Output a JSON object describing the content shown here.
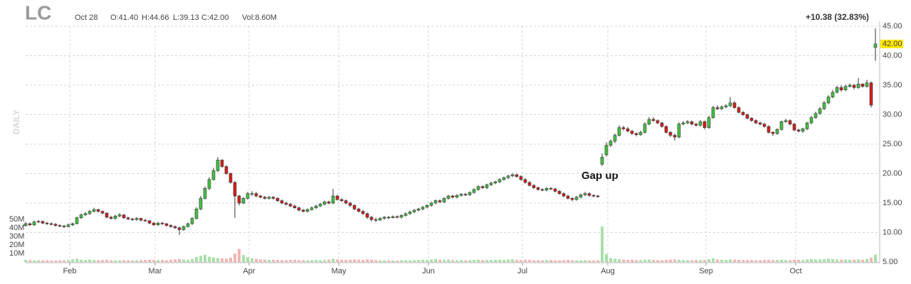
{
  "chart_data": {
    "type": "candlestick",
    "title": "LC",
    "header_stats": [
      "Oct 28",
      "O:41.40",
      "H:44.66",
      "L:39.13",
      "C:42.00",
      "Vol:8.60M"
    ],
    "change_label": "+10.38 (32.83%)",
    "period_label": "DAILY",
    "annotation": "Gap up",
    "up_color": "#44c144",
    "down_color": "#d41f1f",
    "volume_up_color": "#a8e0a8",
    "volume_down_color": "#f4b4b4",
    "change_color": "#2a9d2a",
    "grid": true,
    "xlim": [
      0,
      199
    ],
    "xticks": [
      {
        "value": 11,
        "label": "Feb"
      },
      {
        "value": 31,
        "label": "Mar"
      },
      {
        "value": 53,
        "label": "Apr"
      },
      {
        "value": 74,
        "label": "May"
      },
      {
        "value": 95,
        "label": "Jun"
      },
      {
        "value": 117,
        "label": "Jul"
      },
      {
        "value": 137,
        "label": "Aug"
      },
      {
        "value": 160,
        "label": "Sep"
      },
      {
        "value": 181,
        "label": "Oct"
      }
    ],
    "ylim": [
      5,
      45
    ],
    "yticks": [
      {
        "value": 5,
        "label": "5.00"
      },
      {
        "value": 10,
        "label": "10.00"
      },
      {
        "value": 15,
        "label": "15.00"
      },
      {
        "value": 20,
        "label": "20.00"
      },
      {
        "value": 25,
        "label": "25.00"
      },
      {
        "value": 30,
        "label": "30.00"
      },
      {
        "value": 35,
        "label": "35.00"
      },
      {
        "value": 40,
        "label": "40.00"
      },
      {
        "value": 45,
        "label": "45.00"
      }
    ],
    "last_price": {
      "value": 42,
      "label": "42.00"
    },
    "open": [
      11.2,
      11.5,
      11.3,
      11.8,
      11.9,
      11.6,
      11.5,
      11.4,
      11.2,
      11.1,
      11.0,
      11.3,
      11.5,
      12.5,
      13.0,
      13.2,
      13.6,
      13.9,
      13.6,
      13.3,
      12.6,
      12.4,
      12.8,
      13.0,
      12.5,
      12.3,
      12.2,
      12.4,
      12.1,
      12.0,
      11.6,
      11.3,
      11.6,
      11.5,
      11.2,
      11.0,
      10.8,
      10.5,
      11.0,
      11.5,
      12.4,
      14.0,
      15.8,
      17.5,
      19.0,
      20.5,
      22.3,
      21.2,
      20.0,
      18.5,
      16.2,
      15.0,
      15.8,
      16.6,
      16.6,
      16.2,
      16.0,
      15.8,
      16.0,
      15.8,
      15.4,
      15.0,
      14.8,
      14.5,
      14.2,
      13.8,
      13.6,
      13.9,
      14.2,
      14.5,
      14.8,
      15.2,
      15.0,
      16.2,
      15.6,
      15.4,
      15.0,
      14.6,
      14.0,
      13.6,
      13.2,
      12.6,
      12.2,
      12.1,
      12.4,
      12.6,
      12.5,
      12.7,
      12.6,
      12.9,
      13.2,
      13.5,
      13.8,
      14.0,
      14.3,
      14.6,
      15.0,
      15.4,
      15.2,
      15.8,
      16.2,
      16.0,
      16.3,
      16.5,
      16.4,
      16.8,
      17.3,
      17.8,
      17.6,
      18.1,
      18.4,
      18.6,
      19.0,
      19.3,
      19.6,
      19.8,
      19.5,
      19.0,
      18.5,
      18.0,
      17.6,
      17.3,
      17.2,
      17.5,
      17.4,
      17.0,
      16.6,
      16.2,
      15.8,
      15.6,
      16.0,
      16.4,
      16.6,
      16.3,
      16.2,
      21.6,
      23.2,
      24.8,
      25.5,
      26.5,
      27.8,
      27.6,
      27.2,
      26.8,
      26.6,
      27.0,
      28.4,
      29.2,
      29.0,
      28.6,
      28.0,
      27.0,
      26.5,
      26.2,
      28.4,
      28.6,
      28.8,
      28.4,
      28.2,
      28.8,
      27.8,
      29.5,
      31.2,
      31.0,
      31.3,
      31.5,
      32.0,
      31.2,
      30.4,
      30.0,
      29.4,
      29.0,
      28.6,
      28.4,
      28.0,
      27.0,
      26.8,
      27.5,
      28.8,
      29.0,
      28.4,
      27.4,
      27.2,
      27.6,
      28.6,
      29.5,
      30.2,
      31.0,
      32.0,
      33.0,
      33.8,
      34.6,
      34.2,
      34.8,
      35.0,
      34.6,
      35.2,
      34.8,
      35.4,
      41.4
    ],
    "high": [
      11.8,
      11.7,
      12.0,
      12.1,
      12.0,
      11.8,
      11.7,
      11.6,
      11.4,
      11.3,
      11.5,
      11.7,
      12.7,
      13.2,
      13.5,
      13.8,
      14.2,
      14.0,
      13.7,
      13.4,
      12.8,
      13.0,
      13.3,
      13.1,
      12.7,
      12.5,
      12.6,
      12.5,
      12.3,
      12.1,
      11.8,
      11.8,
      11.8,
      11.6,
      11.4,
      11.2,
      11.0,
      11.2,
      11.7,
      12.6,
      14.3,
      16.2,
      17.8,
      19.4,
      21.0,
      22.8,
      22.4,
      21.4,
      20.2,
      18.7,
      16.4,
      16.0,
      16.9,
      17.0,
      16.9,
      16.4,
      16.2,
      16.2,
      16.2,
      16.0,
      15.6,
      15.2,
      15.0,
      14.7,
      14.4,
      14.0,
      14.1,
      14.4,
      14.7,
      15.0,
      15.4,
      15.4,
      17.4,
      16.4,
      15.8,
      15.6,
      15.2,
      14.8,
      14.2,
      13.8,
      13.4,
      12.8,
      12.5,
      12.6,
      12.8,
      12.8,
      12.9,
      12.9,
      13.1,
      13.4,
      13.7,
      14.0,
      14.2,
      14.5,
      14.8,
      15.2,
      15.6,
      15.6,
      16.0,
      16.4,
      16.4,
      16.5,
      16.7,
      16.7,
      17.0,
      17.5,
      18.0,
      18.0,
      18.3,
      18.6,
      18.8,
      19.2,
      19.5,
      19.8,
      20.1,
      20.0,
      19.7,
      19.2,
      18.7,
      18.2,
      17.8,
      17.5,
      17.7,
      17.7,
      17.6,
      17.2,
      16.8,
      16.4,
      16.0,
      16.2,
      16.6,
      16.9,
      16.8,
      16.5,
      16.4,
      23.4,
      25.3,
      25.8,
      26.8,
      28.2,
      28.1,
      27.9,
      27.4,
      27.0,
      27.3,
      28.7,
      29.6,
      29.6,
      29.2,
      28.8,
      28.2,
      27.2,
      26.8,
      28.7,
      28.9,
      29.1,
      29.0,
      28.6,
      29.1,
      29.0,
      29.8,
      31.5,
      31.6,
      31.6,
      31.8,
      33.0,
      32.3,
      31.4,
      30.6,
      30.2,
      29.6,
      29.2,
      28.8,
      28.6,
      28.2,
      27.2,
      27.7,
      29.0,
      29.3,
      29.2,
      28.6,
      27.6,
      27.8,
      28.8,
      29.8,
      30.5,
      31.3,
      32.3,
      33.3,
      34.2,
      34.9,
      35.0,
      35.1,
      35.3,
      35.2,
      36.2,
      35.3,
      35.9,
      35.6,
      44.66
    ],
    "low": [
      11.0,
      11.1,
      11.1,
      11.6,
      11.4,
      11.3,
      11.2,
      11.0,
      10.9,
      10.8,
      10.9,
      11.1,
      11.4,
      12.3,
      12.8,
      13.0,
      13.4,
      13.4,
      13.1,
      12.4,
      12.2,
      12.2,
      12.6,
      12.3,
      12.1,
      12.0,
      12.0,
      11.9,
      11.8,
      11.4,
      11.1,
      11.1,
      11.3,
      11.0,
      10.8,
      10.6,
      9.6,
      10.3,
      10.9,
      11.3,
      12.2,
      13.8,
      15.6,
      17.2,
      18.8,
      20.3,
      21.0,
      19.8,
      18.3,
      12.5,
      14.6,
      14.8,
      15.6,
      16.2,
      16.0,
      15.8,
      15.6,
      15.6,
      15.6,
      15.2,
      14.8,
      14.6,
      14.3,
      14.0,
      13.6,
      13.4,
      13.4,
      13.7,
      14.0,
      14.3,
      14.6,
      14.8,
      14.8,
      15.4,
      15.2,
      14.8,
      14.4,
      13.8,
      13.4,
      13.0,
      12.3,
      11.9,
      11.8,
      12.0,
      12.2,
      12.3,
      12.4,
      12.4,
      12.4,
      12.7,
      13.0,
      13.3,
      13.6,
      13.8,
      14.1,
      14.4,
      14.8,
      15.0,
      15.0,
      15.6,
      15.8,
      15.8,
      16.1,
      16.2,
      16.2,
      16.6,
      17.1,
      17.4,
      17.4,
      17.9,
      18.2,
      18.4,
      18.8,
      19.1,
      19.4,
      19.3,
      18.8,
      18.3,
      17.8,
      17.4,
      17.1,
      17.0,
      17.0,
      17.2,
      16.8,
      16.4,
      16.0,
      15.6,
      15.3,
      15.4,
      15.8,
      16.2,
      16.1,
      16.0,
      15.9,
      21.3,
      22.9,
      24.5,
      25.2,
      26.3,
      27.3,
      27.0,
      26.6,
      26.3,
      26.4,
      26.8,
      28.2,
      28.8,
      28.4,
      27.8,
      26.8,
      26.2,
      25.6,
      26.0,
      28.2,
      28.4,
      28.2,
      28.0,
      28.0,
      27.5,
      27.6,
      29.3,
      30.8,
      30.8,
      31.1,
      31.3,
      31.0,
      30.2,
      29.8,
      29.2,
      28.8,
      28.4,
      28.2,
      27.8,
      26.8,
      26.4,
      26.6,
      27.3,
      28.6,
      28.2,
      27.2,
      27.0,
      26.9,
      27.4,
      28.4,
      29.3,
      30.0,
      30.8,
      31.8,
      32.8,
      33.6,
      33.9,
      34.0,
      34.6,
      34.3,
      34.4,
      34.6,
      34.6,
      31.2,
      39.13
    ],
    "close": [
      11.5,
      11.3,
      11.8,
      11.9,
      11.6,
      11.5,
      11.4,
      11.2,
      11.1,
      11.0,
      11.3,
      11.5,
      12.5,
      13.0,
      13.2,
      13.6,
      13.9,
      13.6,
      13.3,
      12.6,
      12.4,
      12.8,
      13.0,
      12.5,
      12.3,
      12.2,
      12.4,
      12.1,
      12.0,
      11.6,
      11.3,
      11.6,
      11.5,
      11.2,
      11.0,
      10.8,
      10.5,
      11.0,
      11.5,
      12.4,
      14.0,
      15.8,
      17.5,
      19.0,
      20.5,
      22.3,
      21.2,
      20.0,
      18.5,
      16.2,
      15.0,
      15.8,
      16.6,
      16.6,
      16.2,
      16.0,
      15.8,
      16.0,
      15.8,
      15.4,
      15.0,
      14.8,
      14.5,
      14.2,
      13.8,
      13.6,
      13.9,
      14.2,
      14.5,
      14.8,
      15.2,
      15.0,
      16.2,
      15.6,
      15.4,
      15.0,
      14.6,
      14.0,
      13.6,
      13.2,
      12.6,
      12.2,
      12.1,
      12.4,
      12.6,
      12.5,
      12.7,
      12.6,
      12.9,
      13.2,
      13.5,
      13.8,
      14.0,
      14.3,
      14.6,
      15.0,
      15.4,
      15.2,
      15.8,
      16.2,
      16.0,
      16.3,
      16.5,
      16.4,
      16.8,
      17.3,
      17.8,
      17.6,
      18.1,
      18.4,
      18.6,
      19.0,
      19.3,
      19.6,
      19.8,
      19.5,
      19.0,
      18.5,
      18.0,
      17.6,
      17.3,
      17.2,
      17.5,
      17.4,
      17.0,
      16.6,
      16.2,
      15.8,
      15.6,
      16.0,
      16.4,
      16.6,
      16.3,
      16.2,
      16.1,
      22.8,
      24.8,
      25.5,
      26.5,
      27.8,
      27.6,
      27.2,
      26.8,
      26.6,
      27.0,
      28.4,
      29.2,
      29.0,
      28.6,
      28.0,
      27.0,
      26.5,
      26.2,
      28.4,
      28.6,
      28.8,
      28.4,
      28.2,
      28.8,
      27.8,
      29.5,
      31.2,
      31.0,
      31.3,
      31.5,
      32.0,
      31.2,
      30.4,
      30.0,
      29.4,
      29.0,
      28.6,
      28.4,
      28.0,
      27.0,
      26.8,
      27.5,
      28.8,
      29.0,
      28.4,
      27.4,
      27.2,
      27.6,
      28.6,
      29.5,
      30.2,
      31.0,
      32.0,
      33.0,
      33.8,
      34.6,
      34.2,
      34.8,
      35.0,
      34.6,
      35.2,
      34.8,
      35.4,
      31.62,
      42.0
    ],
    "volume": {
      "lim": [
        0,
        50000000
      ],
      "ticks": [
        {
          "value": 10000000,
          "label": "10M"
        },
        {
          "value": 20000000,
          "label": "20M"
        },
        {
          "value": 30000000,
          "label": "30M"
        },
        {
          "value": 40000000,
          "label": "40M"
        },
        {
          "value": 50000000,
          "label": "50M"
        }
      ],
      "values": [
        2500000,
        2200000,
        1800000,
        2000000,
        1900000,
        2100000,
        1700000,
        1600000,
        1800000,
        2000000,
        2300000,
        3200000,
        3800000,
        2600000,
        2200000,
        2900000,
        2400000,
        2000000,
        2300000,
        2600000,
        2100000,
        1900000,
        1800000,
        2200000,
        2000000,
        1700000,
        1900000,
        2100000,
        2400000,
        2600000,
        2300000,
        2200000,
        2500000,
        2000000,
        2600000,
        3000000,
        3400000,
        2800000,
        2600000,
        3600000,
        5800000,
        7200000,
        8400000,
        6100000,
        5400000,
        4800000,
        4400000,
        3900000,
        5200000,
        9800000,
        15300000,
        8200000,
        5600000,
        4200000,
        3600000,
        3000000,
        2800000,
        2500000,
        2600000,
        2400000,
        2200000,
        2100000,
        2300000,
        2500000,
        2100000,
        2000000,
        1900000,
        2200000,
        2400000,
        2000000,
        2300000,
        2600000,
        3800000,
        2900000,
        2500000,
        2300000,
        2600000,
        2900000,
        2700000,
        2400000,
        3100000,
        2800000,
        2200000,
        2000000,
        1900000,
        2100000,
        1800000,
        1700000,
        2000000,
        2200000,
        1900000,
        2100000,
        2400000,
        2600000,
        2300000,
        2800000,
        3400000,
        2600000,
        2400000,
        2900000,
        2200000,
        2000000,
        2300000,
        1900000,
        2100000,
        2500000,
        2700000,
        2200000,
        2400000,
        2300000,
        2600000,
        2800000,
        2500000,
        2900000,
        3100000,
        2400000,
        2200000,
        2600000,
        2400000,
        2200000,
        2000000,
        1900000,
        2100000,
        2300000,
        2000000,
        1800000,
        2200000,
        2500000,
        2100000,
        1900000,
        2000000,
        2200000,
        1800000,
        1700000,
        2000000,
        41500000,
        9200000,
        4600000,
        3800000,
        3200000,
        2800000,
        2500000,
        2600000,
        2300000,
        2200000,
        2700000,
        3100000,
        2400000,
        2200000,
        2000000,
        2500000,
        2800000,
        3000000,
        2600000,
        2300000,
        2100000,
        2000000,
        2400000,
        2200000,
        2500000,
        3400000,
        4200000,
        2800000,
        2600000,
        2400000,
        3000000,
        2700000,
        2500000,
        2300000,
        2200000,
        2400000,
        2100000,
        2000000,
        2300000,
        2600000,
        2200000,
        2400000,
        2700000,
        2300000,
        2200000,
        2600000,
        2500000,
        2300000,
        2800000,
        3200000,
        2900000,
        3100000,
        3400000,
        3800000,
        3300000,
        3000000,
        2700000,
        2900000,
        2600000,
        2800000,
        3000000,
        2600000,
        3500000,
        5200000,
        8600000
      ]
    }
  }
}
